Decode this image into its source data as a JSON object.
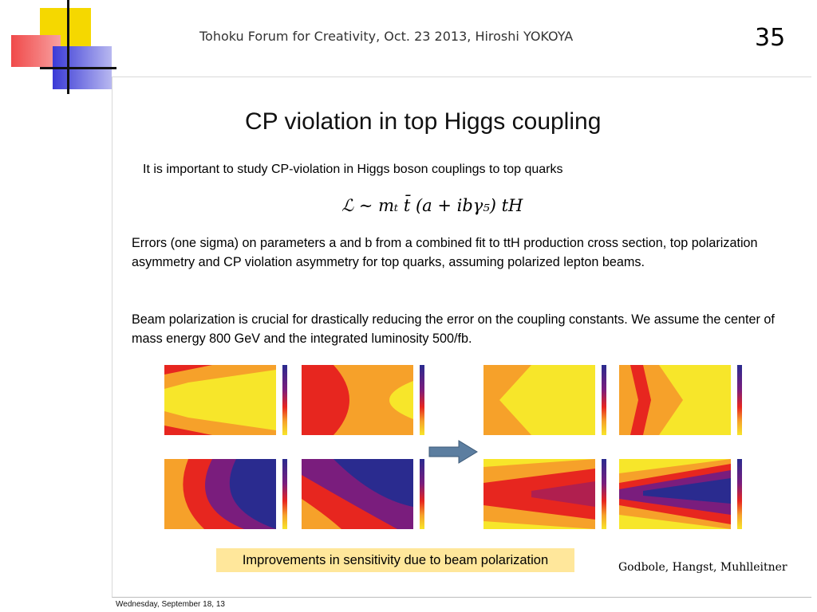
{
  "header": {
    "title": "Tohoku Forum for Creativity, Oct. 23 2013, Hiroshi YOKOYA",
    "slide_number": "35"
  },
  "slide": {
    "title": "CP violation in top Higgs coupling",
    "intro": "It is important  to study CP-violation in Higgs boson couplings to top quarks",
    "formula": "ℒ ∼ mₜ t̄ (a + ibγ₅) tH",
    "paragraph1": "Errors (one sigma) on parameters a and b from a combined fit to ttH production cross section, top polarization asymmetry and CP violation asymmetry for top quarks, assuming polarized lepton beams.",
    "paragraph2": "Beam polarization is crucial for drastically reducing the error on the coupling constants. We assume the center of mass energy 800 GeV and the integrated luminosity 500/fb.",
    "callout": "Improvements in sensitivity due to beam polarization",
    "credit": "Godbole, Hangst, Muhlleitner"
  },
  "footer": {
    "date": "Wednesday, September 18, 13"
  },
  "colors": {
    "yellow": "#f7e62a",
    "orange": "#f6a12a",
    "red": "#e7261f",
    "purple": "#7a1d7d",
    "navy": "#2a2b8f",
    "arrow": "#5c7ea0",
    "callout_bg": "#ffe79b"
  }
}
